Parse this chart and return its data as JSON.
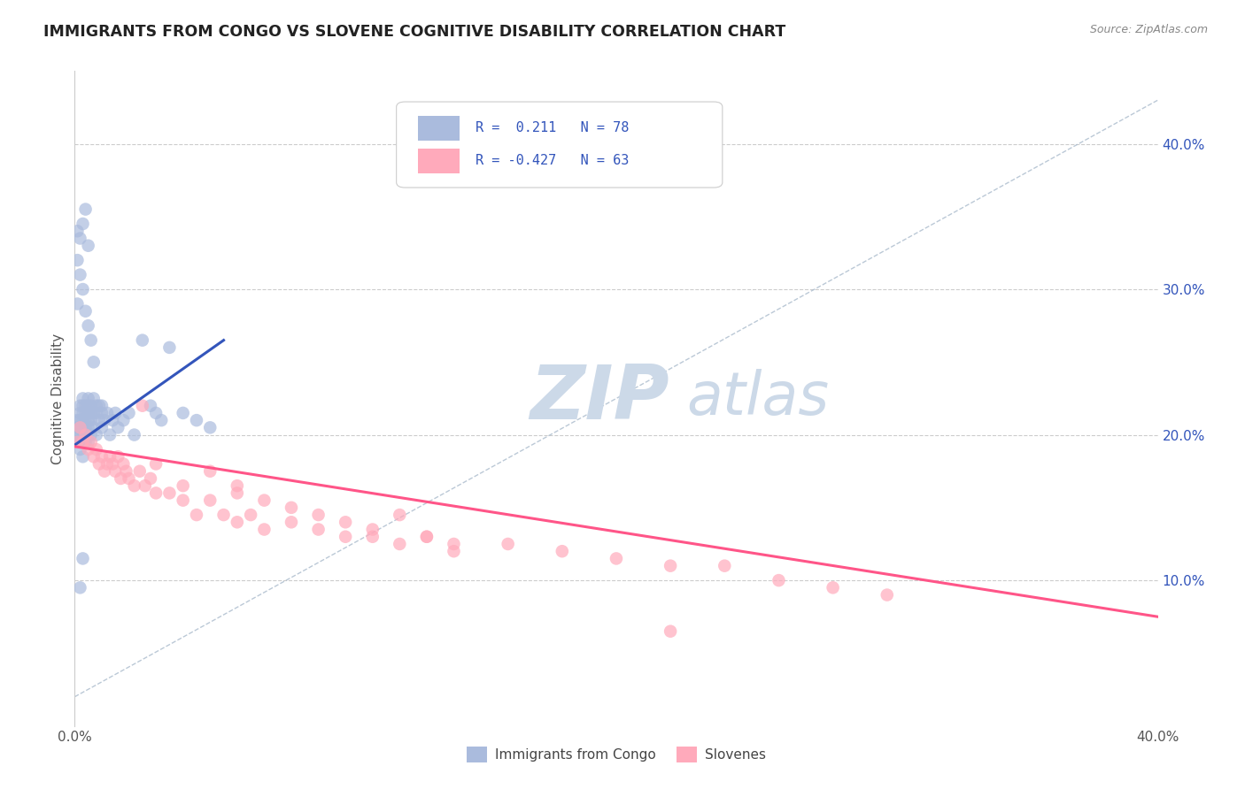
{
  "title": "IMMIGRANTS FROM CONGO VS SLOVENE COGNITIVE DISABILITY CORRELATION CHART",
  "source_text": "Source: ZipAtlas.com",
  "ylabel": "Cognitive Disability",
  "xlim": [
    0.0,
    0.4
  ],
  "ylim": [
    0.0,
    0.45
  ],
  "ytick_right_labels": [
    "10.0%",
    "20.0%",
    "30.0%",
    "40.0%"
  ],
  "ytick_right_values": [
    0.1,
    0.2,
    0.3,
    0.4
  ],
  "grid_color": "#cccccc",
  "blue_color": "#aabbdd",
  "pink_color": "#ffaabb",
  "blue_line_color": "#3355bb",
  "pink_line_color": "#ff5588",
  "dashed_line_color": "#aabbcc",
  "legend_R_blue": " 0.211",
  "legend_N_blue": "78",
  "legend_R_pink": "-0.427",
  "legend_N_pink": "63",
  "legend_label_blue": "Immigrants from Congo",
  "legend_label_pink": "Slovenes",
  "blue_scatter_x": [
    0.001,
    0.001,
    0.001,
    0.001,
    0.002,
    0.002,
    0.002,
    0.002,
    0.002,
    0.002,
    0.002,
    0.003,
    0.003,
    0.003,
    0.003,
    0.003,
    0.003,
    0.003,
    0.003,
    0.004,
    0.004,
    0.004,
    0.004,
    0.004,
    0.004,
    0.005,
    0.005,
    0.005,
    0.005,
    0.005,
    0.005,
    0.006,
    0.006,
    0.006,
    0.006,
    0.007,
    0.007,
    0.007,
    0.008,
    0.008,
    0.008,
    0.009,
    0.009,
    0.01,
    0.01,
    0.01,
    0.011,
    0.012,
    0.013,
    0.014,
    0.015,
    0.016,
    0.018,
    0.02,
    0.022,
    0.025,
    0.028,
    0.03,
    0.032,
    0.035,
    0.04,
    0.045,
    0.05,
    0.001,
    0.001,
    0.001,
    0.002,
    0.002,
    0.003,
    0.003,
    0.004,
    0.004,
    0.005,
    0.005,
    0.006,
    0.007,
    0.002,
    0.003
  ],
  "blue_scatter_y": [
    0.21,
    0.205,
    0.2,
    0.195,
    0.22,
    0.215,
    0.21,
    0.205,
    0.2,
    0.195,
    0.19,
    0.225,
    0.22,
    0.215,
    0.21,
    0.205,
    0.2,
    0.195,
    0.185,
    0.22,
    0.215,
    0.21,
    0.205,
    0.2,
    0.195,
    0.225,
    0.22,
    0.215,
    0.21,
    0.205,
    0.195,
    0.22,
    0.215,
    0.21,
    0.2,
    0.225,
    0.215,
    0.205,
    0.22,
    0.215,
    0.2,
    0.22,
    0.21,
    0.22,
    0.215,
    0.205,
    0.21,
    0.215,
    0.2,
    0.21,
    0.215,
    0.205,
    0.21,
    0.215,
    0.2,
    0.265,
    0.22,
    0.215,
    0.21,
    0.26,
    0.215,
    0.21,
    0.205,
    0.34,
    0.32,
    0.29,
    0.335,
    0.31,
    0.345,
    0.3,
    0.355,
    0.285,
    0.33,
    0.275,
    0.265,
    0.25,
    0.095,
    0.115
  ],
  "pink_scatter_x": [
    0.001,
    0.002,
    0.003,
    0.004,
    0.005,
    0.006,
    0.007,
    0.008,
    0.009,
    0.01,
    0.011,
    0.012,
    0.013,
    0.014,
    0.015,
    0.016,
    0.017,
    0.018,
    0.019,
    0.02,
    0.022,
    0.024,
    0.026,
    0.028,
    0.03,
    0.035,
    0.04,
    0.045,
    0.05,
    0.055,
    0.06,
    0.065,
    0.07,
    0.08,
    0.09,
    0.1,
    0.11,
    0.12,
    0.13,
    0.14,
    0.06,
    0.08,
    0.1,
    0.12,
    0.14,
    0.16,
    0.18,
    0.2,
    0.22,
    0.24,
    0.26,
    0.28,
    0.3,
    0.025,
    0.03,
    0.04,
    0.05,
    0.06,
    0.07,
    0.09,
    0.11,
    0.13,
    0.22
  ],
  "pink_scatter_y": [
    0.195,
    0.205,
    0.195,
    0.2,
    0.19,
    0.195,
    0.185,
    0.19,
    0.18,
    0.185,
    0.175,
    0.18,
    0.185,
    0.18,
    0.175,
    0.185,
    0.17,
    0.18,
    0.175,
    0.17,
    0.165,
    0.175,
    0.165,
    0.17,
    0.16,
    0.16,
    0.155,
    0.145,
    0.155,
    0.145,
    0.14,
    0.145,
    0.135,
    0.14,
    0.135,
    0.13,
    0.13,
    0.125,
    0.13,
    0.12,
    0.165,
    0.15,
    0.14,
    0.145,
    0.125,
    0.125,
    0.12,
    0.115,
    0.11,
    0.11,
    0.1,
    0.095,
    0.09,
    0.22,
    0.18,
    0.165,
    0.175,
    0.16,
    0.155,
    0.145,
    0.135,
    0.13,
    0.065
  ],
  "blue_trendline_x": [
    0.0,
    0.055
  ],
  "blue_trendline_y": [
    0.193,
    0.265
  ],
  "pink_trendline_x": [
    0.0,
    0.4
  ],
  "pink_trendline_y": [
    0.192,
    0.075
  ],
  "dashed_trendline_x": [
    0.0,
    0.4
  ],
  "dashed_trendline_y": [
    0.02,
    0.43
  ]
}
